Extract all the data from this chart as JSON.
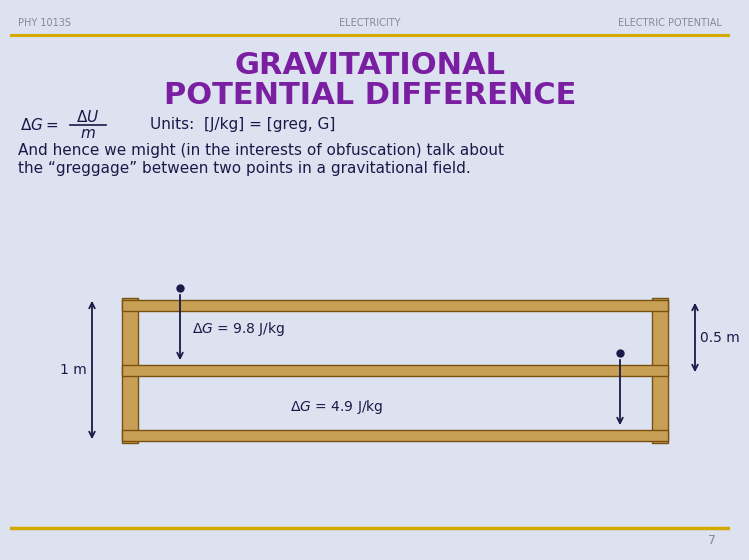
{
  "bg_color": "#dce2ef",
  "header_left": "PHY 1013S",
  "header_center": "ELECTRICITY",
  "header_right": "ELECTRIC POTENTIAL",
  "header_color": "#888899",
  "title_line1": "GRAVITATIONAL",
  "title_line2": "POTENTIAL DIFFERENCE",
  "title_color": "#7b1fa2",
  "units_text": "Units:  [J/kg] = [greg, G]",
  "body_text_line1": "And hence we might (in the interests of obfuscation) talk about",
  "body_text_line2": "the “greggage” between two points in a gravitational field.",
  "body_color": "#1a1a4a",
  "label_1m": "1 m",
  "label_05m": "0.5 m",
  "label_dG_top": "ΔG = 9.8 J/kg",
  "label_dG_bot": "ΔG = 4.9 J/kg",
  "wood_color": "#c8a055",
  "wood_edge_color": "#7a5010",
  "arrow_color": "#1a1a4a",
  "footer_line_color": "#d4aa00",
  "header_line_color": "#d4aa00",
  "page_number": "7"
}
